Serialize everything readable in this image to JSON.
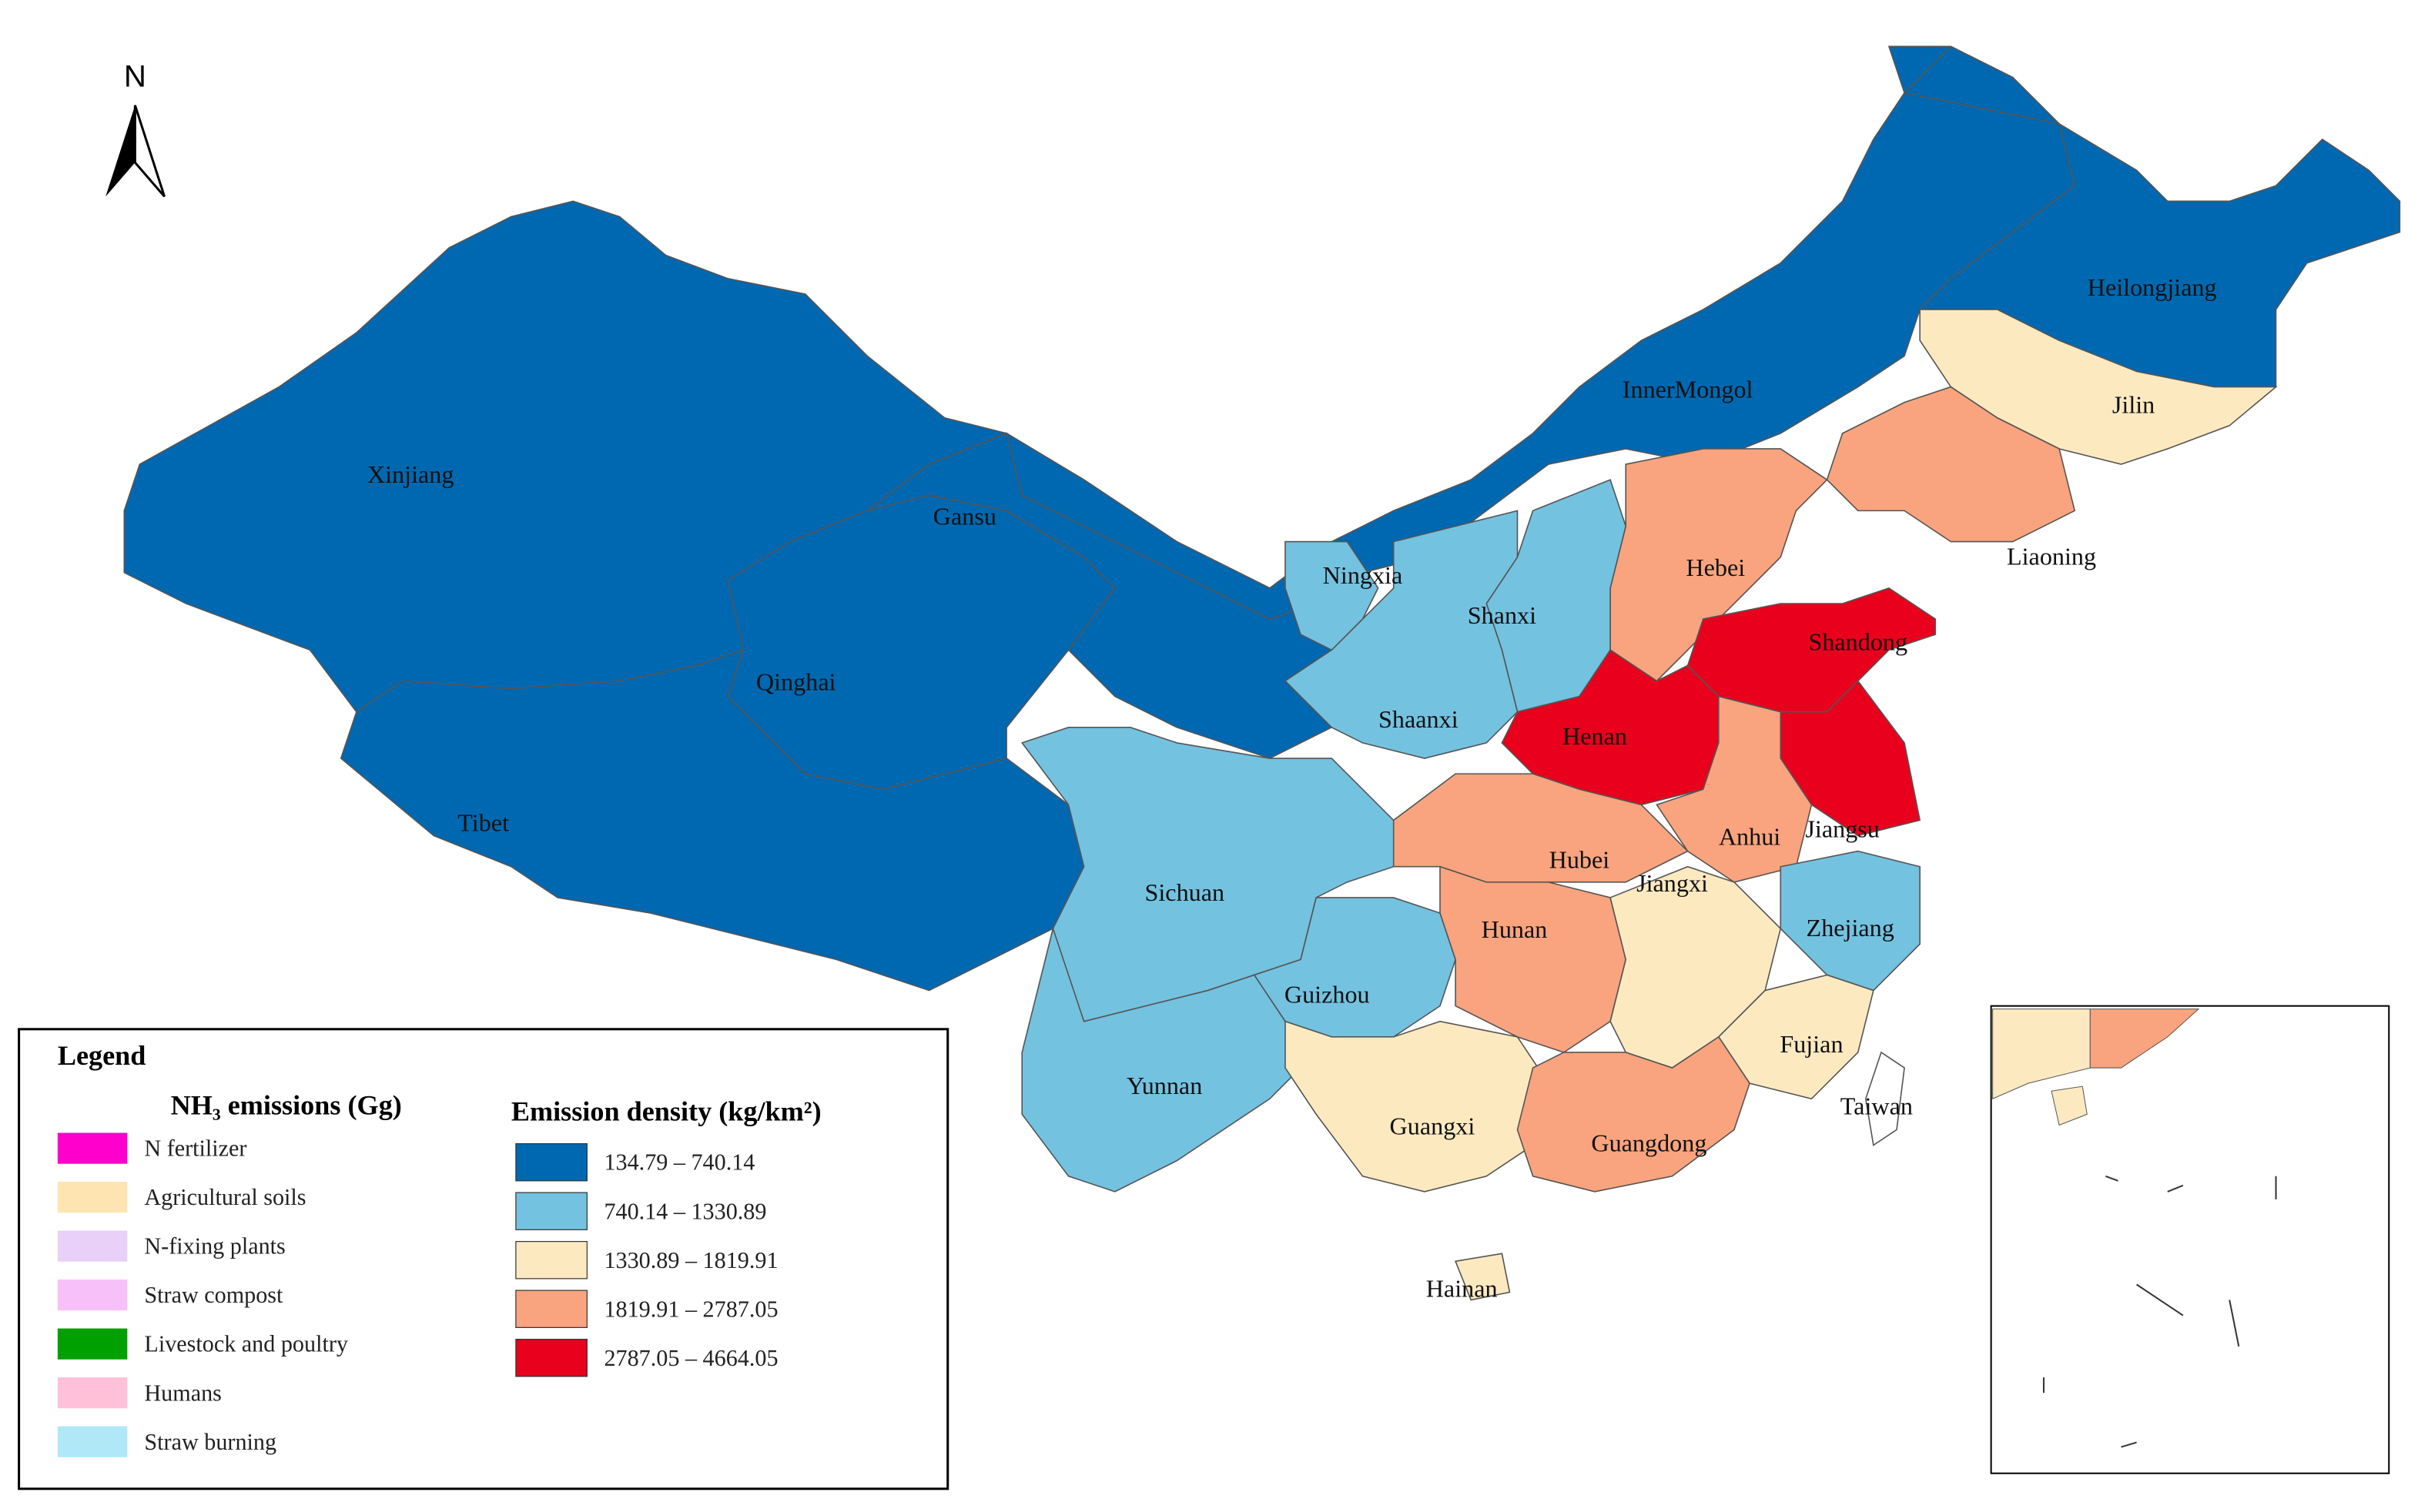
{
  "north_arrow": "N",
  "legend": {
    "title": "Legend",
    "emissions_title": "NH₃ emissions (Gg)",
    "sources": [
      {
        "name": "N fertilizer",
        "color": "#ff00cc"
      },
      {
        "name": "Agricultural soils",
        "color": "#fde4b0"
      },
      {
        "name": "N-fixing plants",
        "color": "#e8d0f8"
      },
      {
        "name": "Straw compost",
        "color": "#f8c0f8"
      },
      {
        "name": "Livestock and poultry",
        "color": "#00a000"
      },
      {
        "name": "Humans",
        "color": "#ffc0d8"
      },
      {
        "name": "Straw burning",
        "color": "#b0e8f8"
      }
    ],
    "density_title": "Emission density (kg/km²)",
    "density_classes": [
      {
        "label": "134.79 – 740.14",
        "color": "#0068b0"
      },
      {
        "label": "740.14 – 1330.89",
        "color": "#73c2e0"
      },
      {
        "label": "1330.89 – 1819.91",
        "color": "#fde9c0"
      },
      {
        "label": "1819.91 – 2787.05",
        "color": "#f9a47e"
      },
      {
        "label": "2787.05 – 4664.05",
        "color": "#e8001c"
      }
    ]
  },
  "provinces": [
    {
      "name": "Xinjiang",
      "class": 0
    },
    {
      "name": "Tibet",
      "class": 0
    },
    {
      "name": "Qinghai",
      "class": 0
    },
    {
      "name": "Gansu",
      "class": 0
    },
    {
      "name": "InnerMongol",
      "class": 0
    },
    {
      "name": "Heilongjiang",
      "class": 0
    },
    {
      "name": "Jilin",
      "class": 2
    },
    {
      "name": "Liaoning",
      "class": 3
    },
    {
      "name": "Hebei",
      "class": 3
    },
    {
      "name": "Shanxi",
      "class": 1
    },
    {
      "name": "Shaanxi",
      "class": 1
    },
    {
      "name": "Ningxia",
      "class": 1
    },
    {
      "name": "Shandong",
      "class": 4
    },
    {
      "name": "Henan",
      "class": 4
    },
    {
      "name": "Jiangsu",
      "class": 4
    },
    {
      "name": "Anhui",
      "class": 3
    },
    {
      "name": "Hubei",
      "class": 3
    },
    {
      "name": "Sichuan",
      "class": 1
    },
    {
      "name": "Guizhou",
      "class": 1
    },
    {
      "name": "Yunnan",
      "class": 1
    },
    {
      "name": "Guangxi",
      "class": 2
    },
    {
      "name": "Hunan",
      "class": 3
    },
    {
      "name": "Jiangxi",
      "class": 2
    },
    {
      "name": "Zhejiang",
      "class": 1
    },
    {
      "name": "Fujian",
      "class": 2
    },
    {
      "name": "Guangdong",
      "class": 3
    },
    {
      "name": "Hainan",
      "class": 2
    },
    {
      "name": "Taiwan",
      "class": null
    }
  ]
}
